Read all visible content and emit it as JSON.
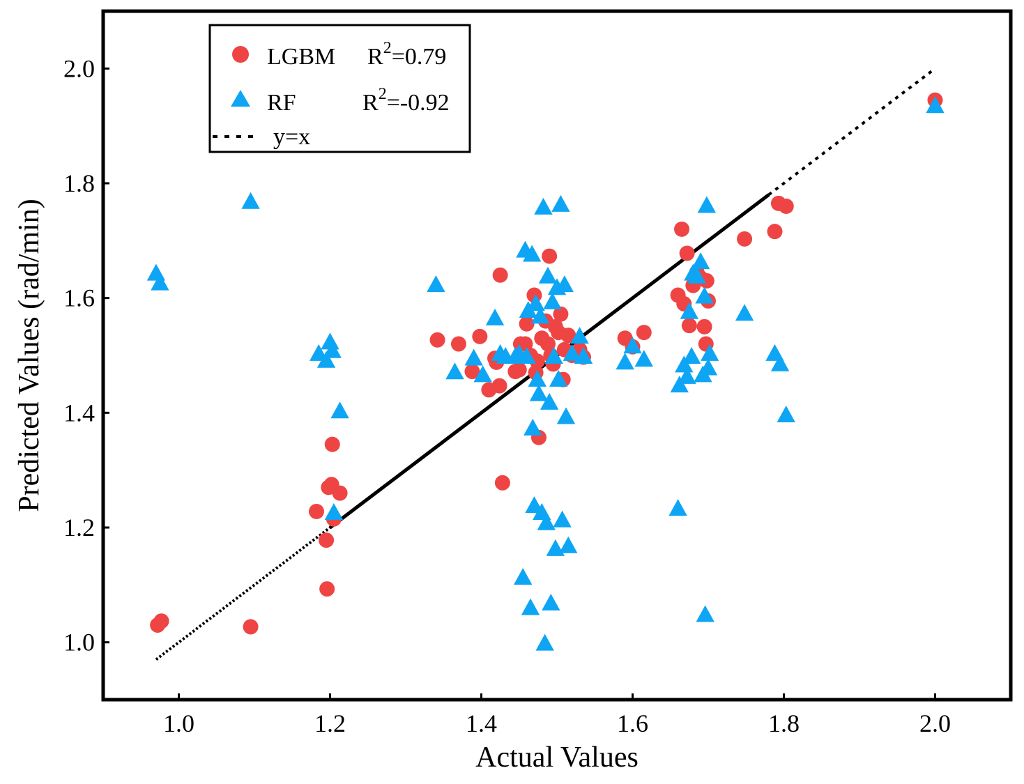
{
  "chart_data": {
    "type": "scatter",
    "xlabel": "Actual Values",
    "ylabel": "Predicted Values (rad/min)",
    "xlim": [
      0.9,
      2.1
    ],
    "ylim": [
      0.9,
      2.1
    ],
    "x_ticks": [
      1.0,
      1.2,
      1.4,
      1.6,
      1.8,
      2.0
    ],
    "y_ticks": [
      1.0,
      1.2,
      1.4,
      1.6,
      1.8,
      2.0
    ],
    "x_tick_labels": [
      "1.0",
      "1.2",
      "1.4",
      "1.6",
      "1.8",
      "2.0"
    ],
    "y_tick_labels": [
      "1.0",
      "1.2",
      "1.4",
      "1.6",
      "1.8",
      "2.0"
    ],
    "grid": false,
    "legend_position": "top-left",
    "legend": [
      {
        "name": "LGBM",
        "stat_prefix": "R",
        "stat_sup": "2",
        "stat_value": "=0.79",
        "marker": "circle",
        "color": "#ef4444"
      },
      {
        "name": "RF",
        "stat_prefix": "R",
        "stat_sup": "2",
        "stat_value": "=-0.92",
        "marker": "triangle",
        "color": "#0ea5f5"
      },
      {
        "name": "y=x",
        "marker": "dashed-line",
        "color": "#000000"
      }
    ],
    "reference_line": {
      "name": "y=x",
      "from": [
        0.97,
        0.97
      ],
      "to": [
        2.0,
        2.0
      ]
    },
    "series": [
      {
        "name": "LGBM",
        "marker": "circle",
        "color": "#ef4444",
        "points": [
          [
            0.972,
            1.03
          ],
          [
            0.977,
            1.037
          ],
          [
            1.095,
            1.027
          ],
          [
            1.182,
            1.228
          ],
          [
            1.195,
            1.178
          ],
          [
            1.196,
            1.093
          ],
          [
            1.198,
            1.27
          ],
          [
            1.202,
            1.275
          ],
          [
            1.203,
            1.345
          ],
          [
            1.205,
            1.215
          ],
          [
            1.213,
            1.26
          ],
          [
            1.342,
            1.527
          ],
          [
            1.37,
            1.52
          ],
          [
            1.388,
            1.472
          ],
          [
            1.398,
            1.533
          ],
          [
            1.41,
            1.44
          ],
          [
            1.418,
            1.495
          ],
          [
            1.42,
            1.488
          ],
          [
            1.424,
            1.447
          ],
          [
            1.425,
            1.64
          ],
          [
            1.428,
            1.278
          ],
          [
            1.445,
            1.472
          ],
          [
            1.45,
            1.475
          ],
          [
            1.452,
            1.52
          ],
          [
            1.458,
            1.52
          ],
          [
            1.46,
            1.555
          ],
          [
            1.465,
            1.5
          ],
          [
            1.47,
            1.605
          ],
          [
            1.472,
            1.47
          ],
          [
            1.474,
            1.49
          ],
          [
            1.476,
            1.357
          ],
          [
            1.48,
            1.53
          ],
          [
            1.485,
            1.56
          ],
          [
            1.488,
            1.52
          ],
          [
            1.49,
            1.673
          ],
          [
            1.492,
            1.5
          ],
          [
            1.495,
            1.485
          ],
          [
            1.498,
            1.55
          ],
          [
            1.502,
            1.54
          ],
          [
            1.505,
            1.572
          ],
          [
            1.508,
            1.458
          ],
          [
            1.51,
            1.51
          ],
          [
            1.515,
            1.535
          ],
          [
            1.52,
            1.5
          ],
          [
            1.53,
            1.51
          ],
          [
            1.535,
            1.497
          ],
          [
            1.59,
            1.53
          ],
          [
            1.6,
            1.515
          ],
          [
            1.615,
            1.54
          ],
          [
            1.66,
            1.605
          ],
          [
            1.665,
            1.72
          ],
          [
            1.668,
            1.59
          ],
          [
            1.672,
            1.678
          ],
          [
            1.675,
            1.552
          ],
          [
            1.68,
            1.622
          ],
          [
            1.685,
            1.645
          ],
          [
            1.69,
            1.635
          ],
          [
            1.695,
            1.55
          ],
          [
            1.697,
            1.52
          ],
          [
            1.698,
            1.63
          ],
          [
            1.7,
            1.595
          ],
          [
            1.748,
            1.703
          ],
          [
            1.788,
            1.716
          ],
          [
            1.793,
            1.765
          ],
          [
            1.803,
            1.76
          ],
          [
            2.0,
            1.945
          ]
        ]
      },
      {
        "name": "RF",
        "marker": "triangle",
        "color": "#0ea5f5",
        "points": [
          [
            0.97,
            1.645
          ],
          [
            0.975,
            1.628
          ],
          [
            1.095,
            1.77
          ],
          [
            1.185,
            1.505
          ],
          [
            1.195,
            1.493
          ],
          [
            1.2,
            1.525
          ],
          [
            1.203,
            1.51
          ],
          [
            1.205,
            1.228
          ],
          [
            1.213,
            1.405
          ],
          [
            1.34,
            1.625
          ],
          [
            1.365,
            1.473
          ],
          [
            1.39,
            1.497
          ],
          [
            1.402,
            1.468
          ],
          [
            1.418,
            1.567
          ],
          [
            1.425,
            1.505
          ],
          [
            1.432,
            1.5
          ],
          [
            1.445,
            1.5
          ],
          [
            1.45,
            1.505
          ],
          [
            1.455,
            1.115
          ],
          [
            1.458,
            1.685
          ],
          [
            1.46,
            1.5
          ],
          [
            1.462,
            1.58
          ],
          [
            1.465,
            1.062
          ],
          [
            1.467,
            1.678
          ],
          [
            1.468,
            1.375
          ],
          [
            1.47,
            1.24
          ],
          [
            1.472,
            1.592
          ],
          [
            1.474,
            1.46
          ],
          [
            1.476,
            1.435
          ],
          [
            1.478,
            1.57
          ],
          [
            1.48,
            1.228
          ],
          [
            1.482,
            1.76
          ],
          [
            1.484,
            1.0
          ],
          [
            1.486,
            1.21
          ],
          [
            1.488,
            1.64
          ],
          [
            1.49,
            1.42
          ],
          [
            1.492,
            1.07
          ],
          [
            1.494,
            1.595
          ],
          [
            1.496,
            1.5
          ],
          [
            1.498,
            1.165
          ],
          [
            1.5,
            1.62
          ],
          [
            1.502,
            1.46
          ],
          [
            1.505,
            1.765
          ],
          [
            1.507,
            1.215
          ],
          [
            1.51,
            1.625
          ],
          [
            1.512,
            1.395
          ],
          [
            1.515,
            1.17
          ],
          [
            1.52,
            1.505
          ],
          [
            1.53,
            1.535
          ],
          [
            1.535,
            1.5
          ],
          [
            1.59,
            1.49
          ],
          [
            1.6,
            1.518
          ],
          [
            1.615,
            1.495
          ],
          [
            1.66,
            1.235
          ],
          [
            1.662,
            1.45
          ],
          [
            1.668,
            1.485
          ],
          [
            1.672,
            1.465
          ],
          [
            1.675,
            1.578
          ],
          [
            1.678,
            1.5
          ],
          [
            1.68,
            1.645
          ],
          [
            1.685,
            1.64
          ],
          [
            1.69,
            1.665
          ],
          [
            1.693,
            1.468
          ],
          [
            1.695,
            1.605
          ],
          [
            1.696,
            1.05
          ],
          [
            1.698,
            1.763
          ],
          [
            1.7,
            1.48
          ],
          [
            1.702,
            1.505
          ],
          [
            1.748,
            1.575
          ],
          [
            1.788,
            1.505
          ],
          [
            1.795,
            1.487
          ],
          [
            1.803,
            1.398
          ],
          [
            2.0,
            1.937
          ]
        ]
      }
    ]
  }
}
